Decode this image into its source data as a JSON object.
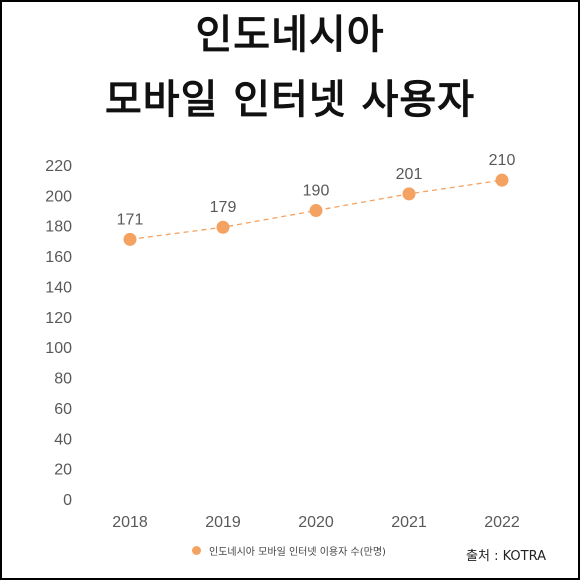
{
  "title": {
    "line1": "인도네시아",
    "line2": "모바일 인터넷 사용자"
  },
  "source": "출처 : KOTRA",
  "colors": {
    "series": "#f4a261",
    "text": "#595959"
  },
  "chart_data": {
    "type": "line",
    "title": "인도네시아 모바일 인터넷 사용자",
    "categories": [
      "2018",
      "2019",
      "2020",
      "2021",
      "2022"
    ],
    "series": [
      {
        "name": "인도네시아 모바일 인터넷 이용자 수(만명)",
        "values": [
          171,
          179,
          190,
          201,
          210
        ]
      }
    ],
    "ylim": [
      0,
      220
    ],
    "yticks": [
      0,
      20,
      40,
      60,
      80,
      100,
      120,
      140,
      160,
      180,
      200,
      220
    ],
    "line_style": "dashed",
    "markers": true,
    "data_labels": true,
    "grid": false,
    "legend_position": "bottom"
  }
}
